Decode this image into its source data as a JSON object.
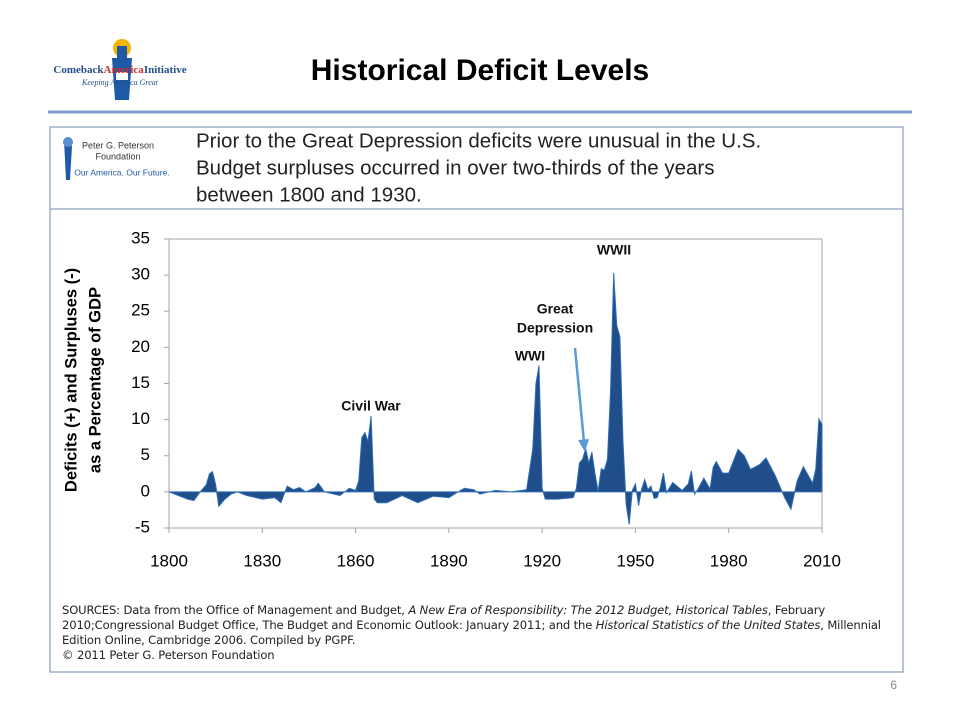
{
  "header": {
    "title": "Historical Deficit Levels",
    "logo": {
      "name_parts": [
        "Comeback",
        "America",
        "Initiative"
      ],
      "tagline": "Keeping America Great"
    },
    "page_number": "6"
  },
  "panel": {
    "logo": {
      "lines": [
        "Peter G. Peterson",
        "Foundation"
      ],
      "tagline": "Our America. Our Future."
    },
    "caption_lines": [
      "Prior to the Great Depression deficits were unusual in the U.S.",
      "Budget surpluses occurred in over two-thirds of the years",
      "between 1800 and 1930."
    ],
    "sources": [
      {
        "text": "SOURCES: Data from the Office of Management and Budget, ",
        "italic": false
      },
      {
        "text": "A New Era of Responsibility: The 2012 Budget, Historical Tables",
        "italic": true
      },
      {
        "text": ", February 2010;Congressional Budget Office, ",
        "italic": false
      },
      {
        "text": "The Budget and Economic Outlook: January 2011",
        "italic": false
      },
      {
        "text": "; and the ",
        "italic": false
      },
      {
        "text": "Historical Statistics of the United States",
        "italic": true
      },
      {
        "text": ", Millennial Edition Online, Cambridge 2006. Compiled by PGPF.",
        "italic": false
      },
      {
        "text": "© 2011 Peter G. Peterson Foundation",
        "italic": false,
        "newline": true
      }
    ]
  },
  "chart_data": {
    "type": "area",
    "ylabel": [
      "Deficits (+) and Surpluses (-)",
      "as a Percentage of GDP"
    ],
    "color": "#1f4e8a",
    "annotations": [
      {
        "text": "Civil War"
      },
      {
        "text": "WWI"
      },
      {
        "lines": [
          "Great",
          "Depression"
        ]
      },
      {
        "text": "WWII"
      }
    ],
    "x": [
      1800,
      1803,
      1806,
      1808,
      1810,
      1812,
      1813,
      1814,
      1815,
      1816,
      1818,
      1820,
      1822,
      1825,
      1830,
      1834,
      1836,
      1838,
      1840,
      1842,
      1844,
      1847,
      1848,
      1850,
      1855,
      1858,
      1860,
      1861,
      1862,
      1863,
      1864,
      1865,
      1866,
      1867,
      1870,
      1875,
      1880,
      1885,
      1890,
      1893,
      1895,
      1898,
      1900,
      1905,
      1910,
      1915,
      1917,
      1918,
      1919,
      1920,
      1921,
      1925,
      1930,
      1931,
      1932,
      1933,
      1934,
      1935,
      1936,
      1937,
      1938,
      1939,
      1940,
      1941,
      1942,
      1943,
      1944,
      1945,
      1946,
      1947,
      1948,
      1949,
      1950,
      1951,
      1952,
      1953,
      1954,
      1955,
      1956,
      1957,
      1958,
      1959,
      1960,
      1962,
      1965,
      1967,
      1968,
      1969,
      1970,
      1972,
      1974,
      1975,
      1976,
      1978,
      1980,
      1983,
      1985,
      1987,
      1990,
      1992,
      1995,
      1998,
      2000,
      2002,
      2004,
      2007,
      2008,
      2009,
      2010
    ],
    "values": [
      0,
      -0.5,
      -1,
      -1.2,
      0,
      1,
      2.5,
      2.8,
      1,
      -2,
      -1,
      -0.3,
      0,
      -0.5,
      -1,
      -0.8,
      -1.5,
      0.8,
      0.3,
      0.6,
      0,
      0.6,
      1.2,
      0,
      -0.5,
      0.5,
      0.2,
      1.5,
      7.5,
      8.2,
      7,
      10.5,
      -1,
      -1.5,
      -1.5,
      -0.5,
      -1.5,
      -0.6,
      -0.8,
      0,
      0.5,
      0.3,
      -0.3,
      0.2,
      0,
      0.3,
      6,
      15,
      17.5,
      0.5,
      -1,
      -1,
      -0.8,
      0.5,
      4,
      4.5,
      6,
      4,
      5.5,
      2.5,
      0.1,
      3.2,
      3,
      4.5,
      14,
      30.3,
      23,
      21.5,
      7,
      -1.7,
      -4.5,
      0.2,
      1.1,
      -1.9,
      0.4,
      1.7,
      0.3,
      0.8,
      -0.9,
      -0.8,
      0.6,
      2.6,
      -0.1,
      1.3,
      0.2,
      1.1,
      2.9,
      -0.3,
      0.3,
      1.9,
      0.4,
      3.4,
      4.2,
      2.6,
      2.6,
      5.9,
      5,
      3.1,
      3.8,
      4.7,
      2.2,
      -0.8,
      -2.4,
      1.5,
      3.5,
      1.2,
      3.2,
      10.1,
      9.3
    ],
    "xlim": [
      1800,
      2010
    ],
    "xticks": [
      1800,
      1830,
      1860,
      1890,
      1920,
      1950,
      1980,
      2010
    ],
    "ylim": [
      -5,
      35
    ],
    "yticks": [
      -5,
      0,
      5,
      10,
      15,
      20,
      25,
      30,
      35
    ]
  }
}
